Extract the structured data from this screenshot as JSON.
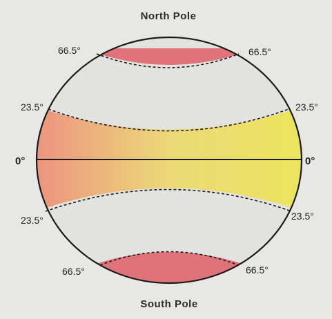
{
  "labels": {
    "north_pole": "North Pole",
    "south_pole": "South Pole",
    "equator_left": "0°",
    "equator_right": "0°",
    "arctic_left": "66.5°",
    "arctic_right": "66.5°",
    "tropic_n_left": "23.5°",
    "tropic_n_right": "23.5°",
    "tropic_s_left": "23.5°",
    "tropic_s_right": "23.5°",
    "antarctic_left": "66.5°",
    "antarctic_right": "66.5°"
  },
  "colors": {
    "background": "#e7e7e4",
    "globe_fill": "#e2e3e0",
    "polar_zone": "#e0727a",
    "tropics_left": "#ec8f80",
    "tropics_center": "#ecd978",
    "tropics_right": "#ece55a",
    "outline": "#1a1a1a"
  }
}
